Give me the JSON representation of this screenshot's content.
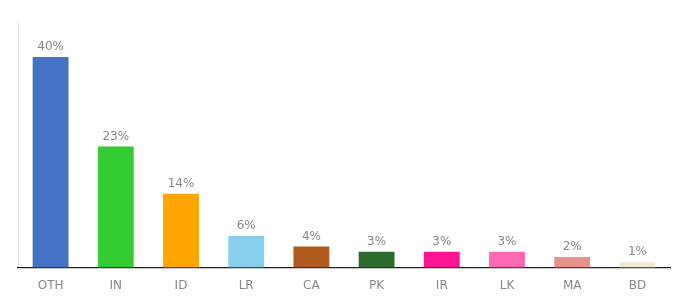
{
  "chart_data": {
    "type": "bar",
    "categories": [
      "OTH",
      "IN",
      "ID",
      "LR",
      "CA",
      "PK",
      "IR",
      "LK",
      "MA",
      "BD"
    ],
    "values": [
      40,
      23,
      14,
      6,
      4,
      3,
      3,
      3,
      2,
      1
    ],
    "value_labels": [
      "40%",
      "23%",
      "14%",
      "6%",
      "4%",
      "3%",
      "3%",
      "3%",
      "2%",
      "1%"
    ],
    "colors": [
      "#4472C4",
      "#33CC33",
      "#FFA500",
      "#87CEEB",
      "#B05A1E",
      "#2D6A2D",
      "#FF1493",
      "#FF69B4",
      "#E8928C",
      "#F0EAD6"
    ],
    "ylim": [
      0,
      47
    ],
    "grid": false,
    "data_labels": true,
    "tick_labels": "x"
  }
}
